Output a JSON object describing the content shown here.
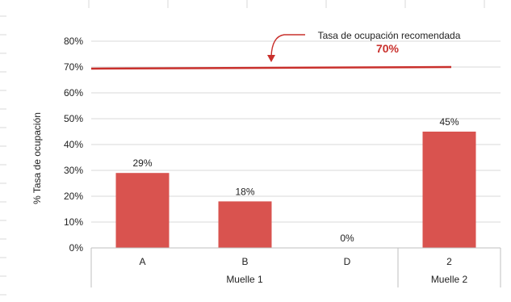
{
  "chart_data": {
    "type": "bar",
    "categories": [
      "A",
      "B",
      "D",
      "2"
    ],
    "groups": [
      {
        "label": "Muelle 1",
        "categories": [
          "A",
          "B",
          "D"
        ]
      },
      {
        "label": "Muelle 2",
        "categories": [
          "2"
        ]
      }
    ],
    "values": [
      29,
      18,
      0,
      45
    ],
    "data_labels": [
      "29%",
      "18%",
      "0%",
      "45%"
    ],
    "ylabel": "% Tasa de ocupación",
    "ylim": [
      0,
      80
    ],
    "yticks": [
      0,
      10,
      20,
      30,
      40,
      50,
      60,
      70,
      80
    ],
    "ytick_labels": [
      "0%",
      "10%",
      "20%",
      "30%",
      "40%",
      "50%",
      "60%",
      "70%",
      "80%"
    ],
    "grid": true,
    "reference_line": {
      "value": 70,
      "label": "Tasa de ocupación recomendada",
      "value_label": "70%"
    },
    "colors": {
      "bar": "#d9534f",
      "reference_line": "#c9302c",
      "annotation_value": "#c9302c",
      "grid": "#d9d9d9",
      "text": "#222222"
    }
  }
}
